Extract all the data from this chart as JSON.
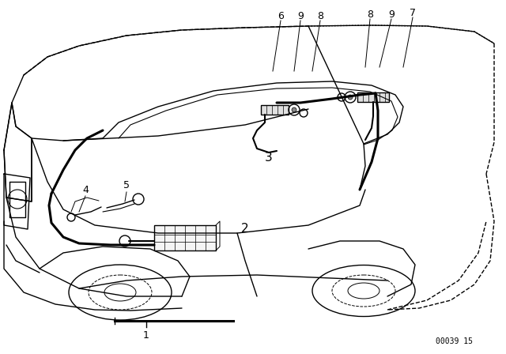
{
  "background_color": "#ffffff",
  "line_color": "#000000",
  "diagram_id": "00039 15",
  "font_size_labels": 9,
  "font_size_id": 7,
  "figsize": [
    6.4,
    4.48
  ],
  "dpi": 100
}
